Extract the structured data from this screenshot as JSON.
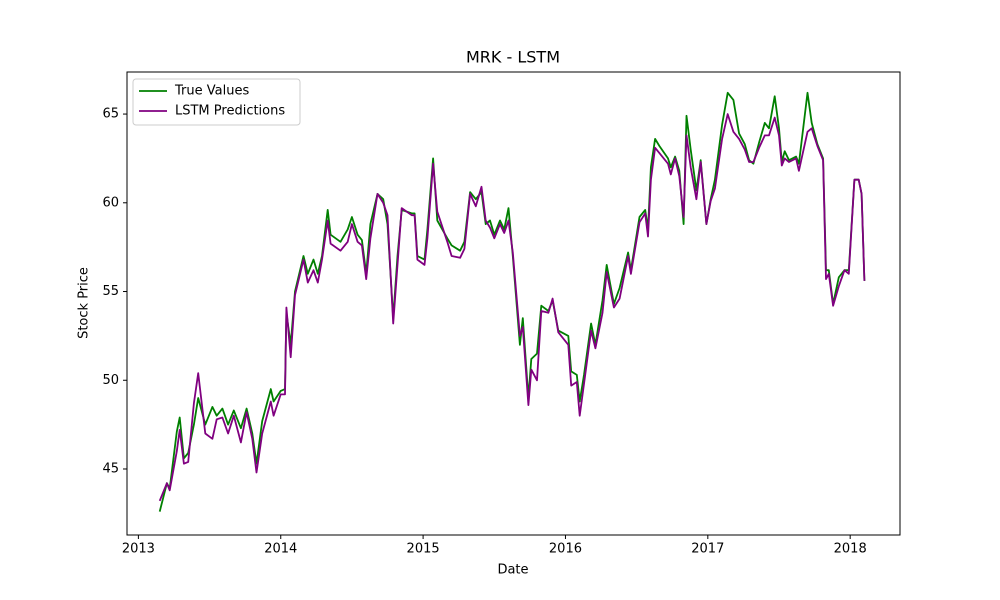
{
  "chart_data": {
    "type": "line",
    "title": "MRK - LSTM",
    "x_label": "Date",
    "y_label": "Stock Price",
    "x": [
      2013.15,
      2013.2,
      2013.22,
      2013.27,
      2013.29,
      2013.32,
      2013.35,
      2013.39,
      2013.42,
      2013.47,
      2013.52,
      2013.55,
      2013.59,
      2013.63,
      2013.67,
      2013.72,
      2013.76,
      2013.8,
      2013.83,
      2013.87,
      2013.93,
      2013.95,
      2014.0,
      2014.03,
      2014.04,
      2014.07,
      2014.1,
      2014.16,
      2014.19,
      2014.23,
      2014.26,
      2014.29,
      2014.33,
      2014.35,
      2014.42,
      2014.47,
      2014.5,
      2014.54,
      2014.57,
      2014.6,
      2014.63,
      2014.68,
      2014.72,
      2014.75,
      2014.79,
      2014.82,
      2014.85,
      2014.92,
      2014.94,
      2014.96,
      2015.01,
      2015.03,
      2015.07,
      2015.1,
      2015.17,
      2015.2,
      2015.26,
      2015.29,
      2015.33,
      2015.37,
      2015.41,
      2015.44,
      2015.47,
      2015.5,
      2015.54,
      2015.57,
      2015.6,
      2015.63,
      2015.68,
      2015.7,
      2015.74,
      2015.76,
      2015.8,
      2015.83,
      2015.88,
      2015.91,
      2015.95,
      2016.02,
      2016.04,
      2016.08,
      2016.1,
      2016.13,
      2016.18,
      2016.21,
      2016.26,
      2016.29,
      2016.34,
      2016.38,
      2016.44,
      2016.46,
      2016.52,
      2016.56,
      2016.58,
      2016.6,
      2016.63,
      2016.66,
      2016.72,
      2016.74,
      2016.77,
      2016.8,
      2016.83,
      2016.85,
      2016.88,
      2016.92,
      2016.95,
      2016.99,
      2017.02,
      2017.05,
      2017.1,
      2017.14,
      2017.18,
      2017.22,
      2017.26,
      2017.29,
      2017.32,
      2017.36,
      2017.4,
      2017.43,
      2017.47,
      2017.5,
      2017.52,
      2017.54,
      2017.57,
      2017.62,
      2017.64,
      2017.7,
      2017.73,
      2017.77,
      2017.81,
      2017.83,
      2017.85,
      2017.88,
      2017.92,
      2017.96,
      2017.99,
      2018.03,
      2018.06,
      2018.08,
      2018.1
    ],
    "series": [
      {
        "name": "True Values",
        "color": "#008000",
        "values": [
          42.6,
          44.2,
          43.9,
          47.1,
          47.9,
          45.6,
          45.9,
          47.5,
          49.0,
          47.5,
          48.5,
          48.0,
          48.4,
          47.5,
          48.3,
          47.3,
          48.4,
          47.0,
          45.3,
          47.7,
          49.5,
          48.8,
          49.4,
          49.5,
          53.8,
          52.0,
          55.0,
          57.0,
          56.0,
          56.8,
          56.0,
          57.0,
          59.6,
          58.2,
          57.8,
          58.5,
          59.2,
          58.2,
          57.9,
          56.0,
          58.8,
          60.5,
          60.2,
          58.8,
          53.5,
          57.0,
          59.6,
          59.4,
          59.4,
          57.0,
          56.8,
          58.5,
          62.5,
          59.0,
          58.0,
          57.6,
          57.3,
          57.8,
          60.6,
          60.2,
          60.6,
          58.8,
          59.0,
          58.2,
          59.0,
          58.5,
          59.7,
          57.0,
          52.0,
          53.5,
          49.0,
          51.2,
          51.5,
          54.2,
          53.9,
          54.5,
          52.8,
          52.5,
          50.5,
          50.3,
          48.8,
          50.3,
          53.2,
          52.0,
          54.5,
          56.5,
          54.3,
          55.2,
          57.2,
          56.2,
          59.2,
          59.6,
          58.5,
          62.0,
          63.6,
          63.2,
          62.5,
          62.0,
          62.6,
          61.8,
          58.8,
          64.9,
          63.0,
          60.7,
          62.4,
          58.8,
          60.2,
          61.3,
          64.4,
          66.2,
          65.8,
          63.9,
          63.3,
          62.4,
          62.2,
          63.4,
          64.5,
          64.2,
          66.0,
          64.2,
          62.3,
          62.9,
          62.4,
          62.6,
          62.2,
          66.2,
          64.5,
          63.3,
          62.5,
          56.2,
          56.2,
          54.3,
          55.8,
          56.2,
          56.2,
          61.3,
          61.3,
          60.5,
          55.6
        ]
      },
      {
        "name": "LSTM Predictions",
        "color": "#800080",
        "values": [
          43.2,
          44.2,
          43.8,
          46.0,
          47.2,
          45.3,
          45.4,
          48.7,
          50.4,
          47.0,
          46.7,
          47.8,
          47.9,
          47.0,
          48.0,
          46.5,
          48.2,
          46.7,
          44.8,
          47.0,
          48.8,
          48.0,
          49.2,
          49.2,
          54.1,
          51.3,
          54.8,
          56.8,
          55.5,
          56.2,
          55.5,
          56.8,
          59.0,
          57.7,
          57.3,
          57.8,
          58.8,
          57.8,
          57.6,
          55.7,
          58.0,
          60.5,
          60.0,
          59.3,
          53.2,
          56.5,
          59.7,
          59.3,
          59.3,
          56.8,
          56.5,
          58.0,
          62.2,
          59.5,
          57.8,
          57.0,
          56.9,
          57.4,
          60.5,
          59.8,
          60.9,
          59.0,
          58.6,
          58.0,
          58.8,
          58.3,
          59.0,
          57.2,
          52.5,
          53.0,
          48.6,
          50.6,
          50.0,
          53.9,
          53.8,
          54.6,
          52.7,
          52.0,
          49.7,
          49.9,
          48.0,
          49.8,
          52.8,
          51.8,
          53.8,
          56.1,
          54.1,
          54.6,
          57.0,
          56.0,
          58.9,
          59.4,
          58.1,
          61.3,
          63.1,
          62.8,
          62.2,
          61.6,
          62.5,
          61.5,
          59.2,
          63.8,
          62.0,
          60.2,
          62.3,
          58.8,
          60.1,
          60.8,
          63.6,
          65.0,
          64.0,
          63.6,
          63.0,
          62.3,
          62.3,
          63.1,
          63.8,
          63.8,
          64.8,
          63.8,
          62.1,
          62.5,
          62.3,
          62.5,
          61.8,
          64.0,
          64.2,
          63.2,
          62.4,
          55.7,
          56.0,
          54.2,
          55.3,
          56.2,
          56.0,
          61.3,
          61.3,
          60.5,
          55.6
        ]
      }
    ],
    "xlim": [
      2012.92,
      2018.35
    ],
    "xticks": [
      2013,
      2014,
      2015,
      2016,
      2017,
      2018
    ],
    "ylim": [
      41.28,
      67.37
    ],
    "yticks": [
      45,
      50,
      55,
      60,
      65
    ],
    "grid": false,
    "legend": "upper left"
  }
}
